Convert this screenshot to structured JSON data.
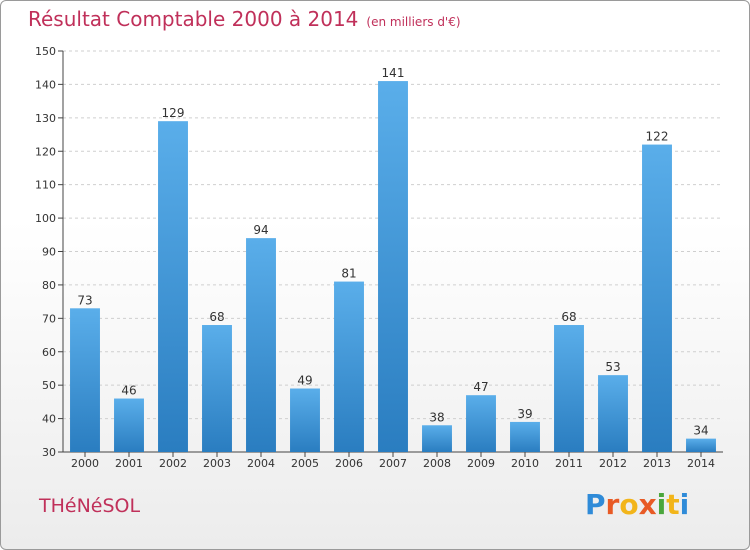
{
  "header": {
    "title": "Résultat Comptable 2000 à 2014",
    "unit": "(en milliers d'€)"
  },
  "footer": {
    "commune": "THéNéSOL",
    "logo_letters": [
      "P",
      "r",
      "o",
      "x",
      "i",
      "t",
      "i"
    ]
  },
  "colors": {
    "bar_top": "#5aaeea",
    "bar_bottom": "#2a7dc0",
    "title": "#c0305a"
  },
  "chart_data": {
    "type": "bar",
    "title": "Résultat Comptable 2000 à 2014",
    "subtitle": "(en milliers d'€)",
    "xlabel": "",
    "ylabel": "",
    "categories": [
      "2000",
      "2001",
      "2002",
      "2003",
      "2004",
      "2005",
      "2006",
      "2007",
      "2008",
      "2009",
      "2010",
      "2011",
      "2012",
      "2013",
      "2014"
    ],
    "values": [
      73,
      46,
      129,
      68,
      94,
      49,
      81,
      141,
      38,
      47,
      39,
      68,
      53,
      122,
      34
    ],
    "ylim": [
      30,
      150
    ],
    "yticks": [
      30,
      40,
      50,
      60,
      70,
      80,
      90,
      100,
      110,
      120,
      130,
      140,
      150
    ],
    "grid": true,
    "legend": "none"
  }
}
